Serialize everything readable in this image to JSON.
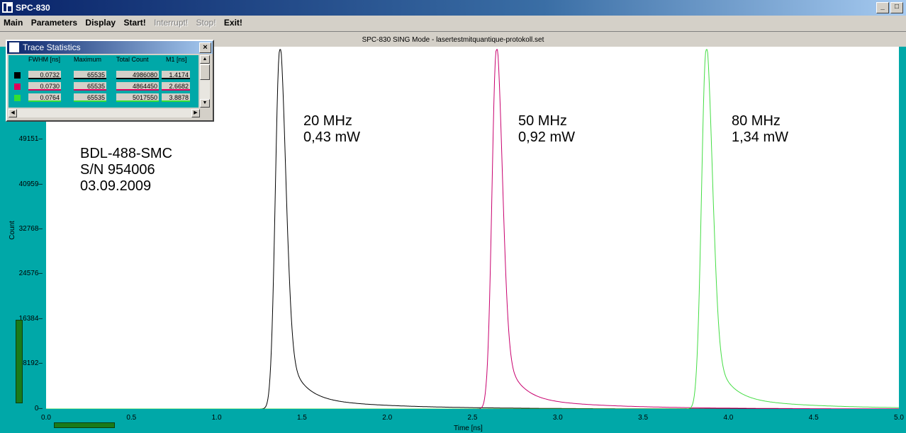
{
  "window": {
    "title": "SPC-830"
  },
  "menu": [
    {
      "label": "Main",
      "enabled": true
    },
    {
      "label": "Parameters",
      "enabled": true
    },
    {
      "label": "Display",
      "enabled": true
    },
    {
      "label": "Start!",
      "enabled": true
    },
    {
      "label": "Interrupt!",
      "enabled": false
    },
    {
      "label": "Stop!",
      "enabled": false
    },
    {
      "label": "Exit!",
      "enabled": true
    }
  ],
  "plot_header": "SPC-830  SING Mode - lasertestmitquantique-protokoll.set",
  "trace_stats": {
    "title": "Trace Statistics",
    "columns": [
      "FWHM [ns]",
      "Maximum",
      "Total Count",
      "M1 [ns]"
    ],
    "rows": [
      {
        "color": "#000000",
        "fwhm": "0.0732",
        "maximum": "65535",
        "total": "4986080",
        "m1": "1.4174"
      },
      {
        "color": "#e0005a",
        "fwhm": "0.0730",
        "maximum": "65535",
        "total": "4864450",
        "m1": "2.6682"
      },
      {
        "color": "#33e033",
        "fwhm": "0.0764",
        "maximum": "65535",
        "total": "5017550",
        "m1": "3.8878"
      }
    ]
  },
  "annotations": {
    "device": [
      "BDL-488-SMC",
      "S/N 954006",
      "03.09.2009"
    ],
    "peak1": [
      "20 MHz",
      "0,43 mW"
    ],
    "peak2": [
      "50 MHz",
      "0,92 mW"
    ],
    "peak3": [
      "80 MHz",
      "1,34 mW"
    ]
  },
  "chart_data": {
    "type": "line",
    "xlabel": "Time [ns]",
    "ylabel": "Count",
    "xlim": [
      0,
      5.0
    ],
    "ylim": [
      0,
      65535
    ],
    "x_ticks": [
      "0.0",
      "0.5",
      "1.0",
      "1.5",
      "2.0",
      "2.5",
      "3.0",
      "3.5",
      "4.0",
      "4.5",
      "5.0"
    ],
    "y_ticks": [
      "0",
      "8192",
      "16384",
      "24576",
      "32768",
      "40959",
      "49151"
    ],
    "series": [
      {
        "color": "#000000",
        "peak_x": 1.37,
        "peak_y": 65535,
        "fwhm": 0.0732
      },
      {
        "color": "#c8006e",
        "peak_x": 2.64,
        "peak_y": 65535,
        "fwhm": 0.073
      },
      {
        "color": "#44dd44",
        "peak_x": 3.87,
        "peak_y": 65535,
        "fwhm": 0.0764
      }
    ]
  }
}
